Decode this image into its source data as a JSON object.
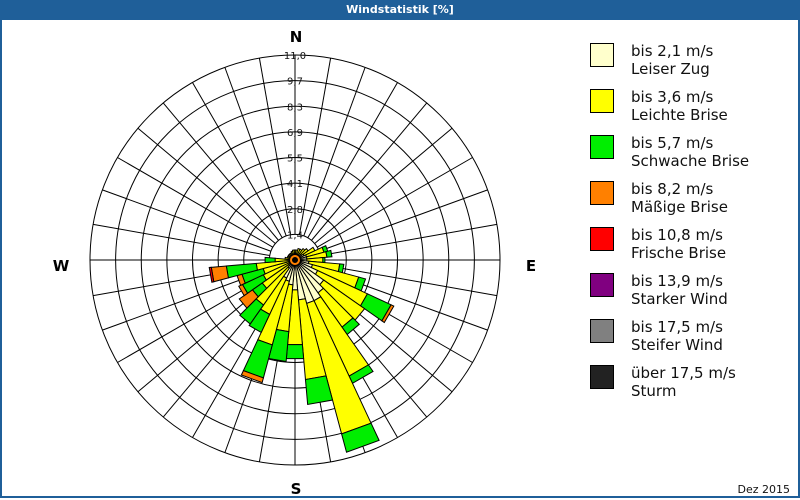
{
  "title": "Windstatistik [%]",
  "date_label": "Dez 2015",
  "chart_data": {
    "type": "windrose",
    "title": "Windstatistik [%]",
    "directions_deg": [
      0,
      10,
      20,
      30,
      40,
      50,
      60,
      70,
      80,
      90,
      100,
      110,
      120,
      130,
      140,
      150,
      160,
      170,
      180,
      190,
      200,
      210,
      220,
      230,
      240,
      250,
      260,
      270,
      280,
      290,
      300,
      310,
      320,
      330,
      340,
      350
    ],
    "cardinal_labels": {
      "N": "N",
      "E": "E",
      "S": "S",
      "W": "W"
    },
    "ring_ticks": [
      "1,4",
      "2,8",
      "4,1",
      "5,5",
      "6,9",
      "8,3",
      "9,7",
      "11,0"
    ],
    "rmax": 11.0,
    "series": [
      {
        "name": "bis 2,1 m/s",
        "label2": "Leiser Zug",
        "color": "#ffffcc",
        "values": [
          0.32,
          0.32,
          0.32,
          0.32,
          0.32,
          0.43,
          0.54,
          0.64,
          0.64,
          0.64,
          0.75,
          0.97,
          1.34,
          1.88,
          2.15,
          2.41,
          2.41,
          2.15,
          1.61,
          1.34,
          1.18,
          1.07,
          0.54,
          0.43,
          0.32,
          0.32,
          0.32,
          0.32,
          0.27,
          0.27,
          0.27,
          0.27,
          0.27,
          0.27,
          0.27,
          0.32
        ]
      },
      {
        "name": "bis 3,6 m/s",
        "label2": "Leichte Brise",
        "color": "#ffff00",
        "values": [
          0.22,
          0.22,
          0.32,
          0.32,
          0.43,
          0.43,
          0.64,
          0.97,
          1.08,
          0.86,
          1.66,
          2.57,
          2.95,
          2.68,
          2.25,
          4.46,
          7.25,
          4.29,
          2.95,
          2.52,
          3.54,
          2.15,
          2.41,
          1.72,
          1.56,
          1.45,
          1.77,
          0.75,
          0.27,
          0.16,
          0.16,
          0.16,
          0.16,
          0.16,
          0.22,
          0.22
        ]
      },
      {
        "name": "bis 5,7 m/s",
        "label2": "Schwache Brise",
        "color": "#00ee00",
        "values": [
          0,
          0,
          0,
          0,
          0,
          0,
          0,
          0.21,
          0.27,
          0.11,
          0.22,
          0.38,
          1.4,
          0,
          0.48,
          0.43,
          1.02,
          1.34,
          0.75,
          1.61,
          1.83,
          1.07,
          1.24,
          0.64,
          1.23,
          1.18,
          1.61,
          0.54,
          0,
          0,
          0,
          0,
          0,
          0,
          0,
          0
        ]
      },
      {
        "name": "bis 8,2 m/s",
        "label2": "Mäßige Brise",
        "color": "#ff8000",
        "values": [
          0,
          0,
          0,
          0,
          0,
          0,
          0,
          0,
          0,
          0,
          0,
          0,
          0.16,
          0,
          0,
          0,
          0,
          0,
          0,
          0,
          0.26,
          0,
          0,
          0.86,
          0.22,
          0.27,
          0.81,
          0,
          0,
          0,
          0,
          0,
          0,
          0,
          0,
          0
        ]
      },
      {
        "name": "bis 10,8 m/s",
        "label2": "Frische Brise",
        "color": "#ff0000",
        "values": [
          0,
          0,
          0,
          0,
          0,
          0,
          0,
          0,
          0,
          0,
          0,
          0,
          0,
          0,
          0,
          0,
          0,
          0,
          0,
          0,
          0,
          0,
          0,
          0,
          0,
          0,
          0.11,
          0,
          0,
          0,
          0,
          0,
          0,
          0,
          0,
          0
        ]
      },
      {
        "name": "bis 13,9 m/s",
        "label2": "Starker Wind",
        "color": "#800080",
        "values": [
          0,
          0,
          0,
          0,
          0,
          0,
          0,
          0,
          0,
          0,
          0,
          0,
          0,
          0,
          0,
          0,
          0,
          0,
          0,
          0,
          0,
          0,
          0,
          0,
          0,
          0,
          0,
          0,
          0,
          0,
          0,
          0,
          0,
          0,
          0,
          0
        ]
      },
      {
        "name": "bis 17,5 m/s",
        "label2": "Steifer Wind",
        "color": "#808080",
        "values": [
          0,
          0,
          0,
          0,
          0,
          0,
          0,
          0,
          0,
          0,
          0,
          0,
          0,
          0,
          0,
          0,
          0,
          0,
          0,
          0,
          0,
          0,
          0,
          0,
          0,
          0,
          0,
          0,
          0,
          0,
          0,
          0,
          0,
          0,
          0,
          0
        ]
      },
      {
        "name": "über 17,5 m/s",
        "label2": "Sturm",
        "color": "#222222",
        "values": [
          0,
          0,
          0,
          0,
          0,
          0,
          0,
          0,
          0,
          0,
          0,
          0,
          0,
          0,
          0,
          0,
          0,
          0,
          0,
          0,
          0,
          0,
          0,
          0,
          0,
          0,
          0,
          0,
          0,
          0,
          0,
          0,
          0,
          0,
          0,
          0
        ]
      }
    ],
    "legend_position": "right"
  }
}
